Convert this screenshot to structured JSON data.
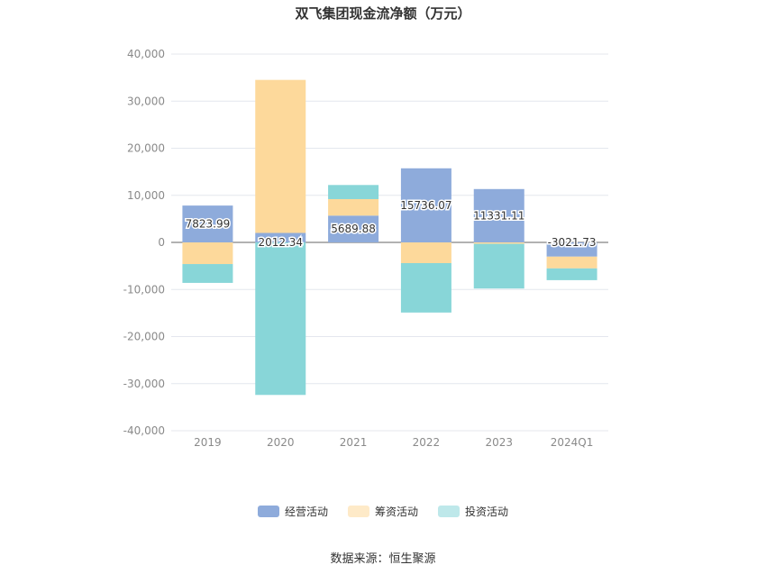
{
  "source_label": "数据来源：恒生聚源",
  "colors": {
    "operating": "#8eabdb",
    "financing": "#fdd99b",
    "investing": "#88d6d8",
    "grid": "#e4e7ee",
    "axis": "#8a8a8a"
  },
  "chart_data": {
    "type": "bar",
    "stacked": true,
    "title": "双飞集团现金流净额（万元）",
    "categories": [
      "2019",
      "2020",
      "2021",
      "2022",
      "2023",
      "2024Q1"
    ],
    "ylim": [
      -40000,
      40000
    ],
    "yticks": [
      "40,000",
      "30,000",
      "20,000",
      "10,000",
      "0",
      "-10,000",
      "-20,000",
      "-30,000",
      "-40,000"
    ],
    "grid": true,
    "legend_position": "bottom",
    "series": [
      {
        "name": "经营活动",
        "key": "operating",
        "values": [
          7823.99,
          2012.34,
          5689.88,
          15736.07,
          11331.11,
          -3021.73
        ],
        "labels": [
          "7823.99",
          "2012.34",
          "5689.88",
          "15736.07",
          "11331.11",
          "-3021.73"
        ]
      },
      {
        "name": "筹资活动",
        "key": "financing",
        "values": [
          -4600,
          32500,
          3500,
          -4400,
          -300,
          -2500
        ]
      },
      {
        "name": "投资活动",
        "key": "investing",
        "values": [
          -4000,
          -32400,
          3000,
          -10500,
          -9500,
          -2500
        ]
      }
    ]
  }
}
